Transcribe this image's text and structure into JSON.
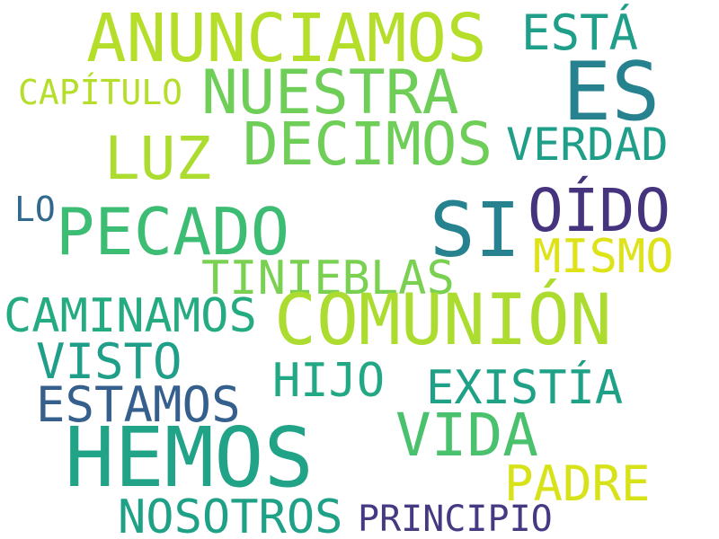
{
  "words": [
    {
      "text": "ANUNCIAMOS",
      "color": "#b5de2b"
    },
    {
      "text": "ESTÁ",
      "color": "#1f9e89"
    },
    {
      "text": "ES",
      "color": "#26828e"
    },
    {
      "text": "CAPÍTULO",
      "color": "#b5de2b"
    },
    {
      "text": "NUESTRA",
      "color": "#6ece58"
    },
    {
      "text": "DECIMOS",
      "color": "#6ece58"
    },
    {
      "text": "VERDAD",
      "color": "#1f9e89"
    },
    {
      "text": "LUZ",
      "color": "#addc30"
    },
    {
      "text": "LO",
      "color": "#31688e"
    },
    {
      "text": "PECADO",
      "color": "#3dbc74"
    },
    {
      "text": "SI",
      "color": "#26828e"
    },
    {
      "text": "OÍDO",
      "color": "#46337e"
    },
    {
      "text": "MISMO",
      "color": "#dde318"
    },
    {
      "text": "TINIEBLAS",
      "color": "#7ad151"
    },
    {
      "text": "CAMINAMOS",
      "color": "#25ab82"
    },
    {
      "text": "COMUNIÓN",
      "color": "#addc30"
    },
    {
      "text": "VISTO",
      "color": "#1f9e89"
    },
    {
      "text": "HIJO",
      "color": "#22a884"
    },
    {
      "text": "EXISTÍA",
      "color": "#1fa187"
    },
    {
      "text": "ESTAMOS",
      "color": "#355f8d"
    },
    {
      "text": "VIDA",
      "color": "#4ac16d"
    },
    {
      "text": "HEMOS",
      "color": "#20a386"
    },
    {
      "text": "PADRE",
      "color": "#d8e219"
    },
    {
      "text": "NOSOTROS",
      "color": "#1fa187"
    },
    {
      "text": "PRINCIPIO",
      "color": "#443a83"
    }
  ]
}
